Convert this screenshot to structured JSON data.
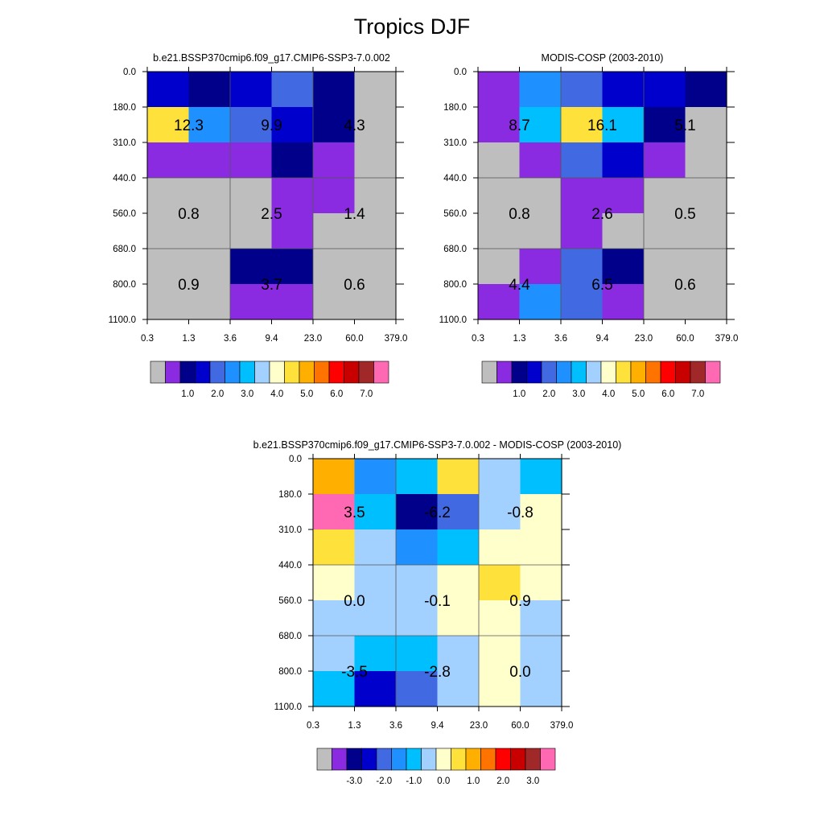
{
  "figure_title": "Tropics DJF",
  "palette_abs": [
    "#BEBEBE",
    "#8A2BE2",
    "#00008B",
    "#0000CD",
    "#4169E1",
    "#1E90FF",
    "#00BFFF",
    "#A3D1FF",
    "#FFFFCC",
    "#FFE13C",
    "#FFAF00",
    "#FF7300",
    "#FF0000",
    "#C80000",
    "#A02828",
    "#FF69B4"
  ],
  "palette_diff": [
    "#BEBEBE",
    "#8A2BE2",
    "#00008B",
    "#0000CD",
    "#4169E1",
    "#1E90FF",
    "#00BFFF",
    "#A3D1FF",
    "#FFFFCC",
    "#FFE13C",
    "#FFAF00",
    "#FF7300",
    "#FF0000",
    "#C80000",
    "#A02828",
    "#FF69B4"
  ],
  "colorbar_abs_labels": [
    "1.0",
    "2.0",
    "3.0",
    "4.0",
    "5.0",
    "6.0",
    "7.0"
  ],
  "colorbar_diff_labels": [
    "-3.0",
    "-2.0",
    "-1.0",
    "0.0",
    "1.0",
    "2.0",
    "3.0"
  ],
  "chart_data": [
    {
      "type": "heatmap",
      "title": "b.e21.BSSP370cmip6.f09_g17.CMIP6-SSP3-7.0.002",
      "x_ticks": [
        "0.3",
        "1.3",
        "3.6",
        "9.4",
        "23.0",
        "60.0",
        "379.0"
      ],
      "y_ticks": [
        "0.0",
        "180.0",
        "310.0",
        "440.0",
        "560.0",
        "680.0",
        "800.0",
        "1100.0"
      ],
      "cell_color_index": [
        [
          3,
          2,
          3,
          4,
          2,
          0
        ],
        [
          9,
          5,
          4,
          3,
          2,
          0
        ],
        [
          1,
          1,
          1,
          2,
          1,
          0
        ],
        [
          0,
          0,
          0,
          1,
          1,
          0
        ],
        [
          0,
          0,
          0,
          1,
          0,
          0
        ],
        [
          0,
          0,
          2,
          2,
          0,
          0
        ],
        [
          0,
          0,
          1,
          1,
          0,
          0
        ]
      ],
      "group_totals": [
        {
          "rows": [
            0,
            2
          ],
          "cols": [
            0,
            1
          ],
          "label": "12.3"
        },
        {
          "rows": [
            0,
            2
          ],
          "cols": [
            2,
            3
          ],
          "label": "9.9"
        },
        {
          "rows": [
            0,
            2
          ],
          "cols": [
            4,
            5
          ],
          "label": "4.3"
        },
        {
          "rows": [
            3,
            4
          ],
          "cols": [
            0,
            1
          ],
          "label": "0.8"
        },
        {
          "rows": [
            3,
            4
          ],
          "cols": [
            2,
            3
          ],
          "label": "2.5"
        },
        {
          "rows": [
            3,
            4
          ],
          "cols": [
            4,
            5
          ],
          "label": "1.4"
        },
        {
          "rows": [
            5,
            6
          ],
          "cols": [
            0,
            1
          ],
          "label": "0.9"
        },
        {
          "rows": [
            5,
            6
          ],
          "cols": [
            2,
            3
          ],
          "label": "3.7"
        },
        {
          "rows": [
            5,
            6
          ],
          "cols": [
            4,
            5
          ],
          "label": "0.6"
        }
      ]
    },
    {
      "type": "heatmap",
      "title": "MODIS-COSP (2003-2010)",
      "x_ticks": [
        "0.3",
        "1.3",
        "3.6",
        "9.4",
        "23.0",
        "60.0",
        "379.0"
      ],
      "y_ticks": [
        "0.0",
        "180.0",
        "310.0",
        "440.0",
        "560.0",
        "680.0",
        "800.0",
        "1100.0"
      ],
      "cell_color_index": [
        [
          1,
          5,
          4,
          3,
          3,
          2
        ],
        [
          1,
          6,
          9,
          6,
          2,
          0
        ],
        [
          0,
          1,
          4,
          3,
          1,
          0
        ],
        [
          0,
          0,
          1,
          1,
          0,
          0
        ],
        [
          0,
          0,
          1,
          0,
          0,
          0
        ],
        [
          0,
          1,
          4,
          2,
          0,
          0
        ],
        [
          1,
          5,
          4,
          1,
          0,
          0
        ]
      ],
      "group_totals": [
        {
          "rows": [
            0,
            2
          ],
          "cols": [
            0,
            1
          ],
          "label": "8.7"
        },
        {
          "rows": [
            0,
            2
          ],
          "cols": [
            2,
            3
          ],
          "label": "16.1"
        },
        {
          "rows": [
            0,
            2
          ],
          "cols": [
            4,
            5
          ],
          "label": "5.1"
        },
        {
          "rows": [
            3,
            4
          ],
          "cols": [
            0,
            1
          ],
          "label": "0.8"
        },
        {
          "rows": [
            3,
            4
          ],
          "cols": [
            2,
            3
          ],
          "label": "2.6"
        },
        {
          "rows": [
            3,
            4
          ],
          "cols": [
            4,
            5
          ],
          "label": "0.5"
        },
        {
          "rows": [
            5,
            6
          ],
          "cols": [
            0,
            1
          ],
          "label": "4.4"
        },
        {
          "rows": [
            5,
            6
          ],
          "cols": [
            2,
            3
          ],
          "label": "6.5"
        },
        {
          "rows": [
            5,
            6
          ],
          "cols": [
            4,
            5
          ],
          "label": "0.6"
        }
      ]
    },
    {
      "type": "heatmap",
      "title": "b.e21.BSSP370cmip6.f09_g17.CMIP6-SSP3-7.0.002 - MODIS-COSP (2003-2010)",
      "x_ticks": [
        "0.3",
        "1.3",
        "3.6",
        "9.4",
        "23.0",
        "60.0",
        "379.0"
      ],
      "y_ticks": [
        "0.0",
        "180.0",
        "310.0",
        "440.0",
        "560.0",
        "680.0",
        "800.0",
        "1100.0"
      ],
      "cell_color_index": [
        [
          10,
          5,
          6,
          9,
          7,
          6
        ],
        [
          15,
          6,
          2,
          4,
          7,
          8
        ],
        [
          9,
          7,
          5,
          6,
          8,
          8
        ],
        [
          8,
          7,
          7,
          8,
          9,
          8
        ],
        [
          7,
          7,
          7,
          8,
          8,
          7
        ],
        [
          7,
          6,
          6,
          7,
          8,
          7
        ],
        [
          6,
          3,
          4,
          7,
          8,
          7
        ]
      ],
      "group_totals": [
        {
          "rows": [
            0,
            2
          ],
          "cols": [
            0,
            1
          ],
          "label": "3.5"
        },
        {
          "rows": [
            0,
            2
          ],
          "cols": [
            2,
            3
          ],
          "label": "-6.2"
        },
        {
          "rows": [
            0,
            2
          ],
          "cols": [
            4,
            5
          ],
          "label": "-0.8"
        },
        {
          "rows": [
            3,
            4
          ],
          "cols": [
            0,
            1
          ],
          "label": "0.0"
        },
        {
          "rows": [
            3,
            4
          ],
          "cols": [
            2,
            3
          ],
          "label": "-0.1"
        },
        {
          "rows": [
            3,
            4
          ],
          "cols": [
            4,
            5
          ],
          "label": "0.9"
        },
        {
          "rows": [
            5,
            6
          ],
          "cols": [
            0,
            1
          ],
          "label": "-3.5"
        },
        {
          "rows": [
            5,
            6
          ],
          "cols": [
            2,
            3
          ],
          "label": "-2.8"
        },
        {
          "rows": [
            5,
            6
          ],
          "cols": [
            4,
            5
          ],
          "label": "0.0"
        }
      ]
    }
  ]
}
